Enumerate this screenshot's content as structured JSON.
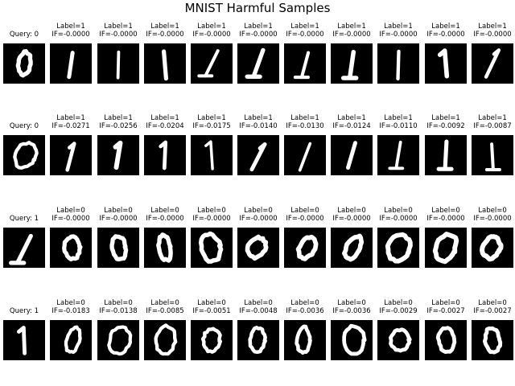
{
  "title": "MNIST Harmful Samples",
  "rows": [
    {
      "query": {
        "text": "Query: 0",
        "digit": "zero",
        "variant": 0
      },
      "samples": [
        {
          "l1": "Label=1",
          "l2": "IF=-0.0000",
          "digit": "one",
          "variant": 1
        },
        {
          "l1": "Label=1",
          "l2": "IF=-0.0000",
          "digit": "one",
          "variant": 2
        },
        {
          "l1": "Label=1",
          "l2": "IF=-0.0000",
          "digit": "one",
          "variant": 3
        },
        {
          "l1": "Label=1",
          "l2": "IF=-0.0000",
          "digit": "one",
          "variant": 4
        },
        {
          "l1": "Label=1",
          "l2": "IF=-0.0000",
          "digit": "one",
          "variant": 5
        },
        {
          "l1": "Label=1",
          "l2": "IF=-0.0000",
          "digit": "one",
          "variant": 6
        },
        {
          "l1": "Label=1",
          "l2": "IF=-0.0000",
          "digit": "one",
          "variant": 7
        },
        {
          "l1": "Label=1",
          "l2": "IF=-0.0000",
          "digit": "one",
          "variant": 8
        },
        {
          "l1": "Label=1",
          "l2": "IF=-0.0000",
          "digit": "one",
          "variant": 9
        },
        {
          "l1": "Label=1",
          "l2": "IF=-0.0000",
          "digit": "one",
          "variant": 10
        }
      ]
    },
    {
      "query": {
        "text": "Query: 0",
        "digit": "zero",
        "variant": 11
      },
      "samples": [
        {
          "l1": "Label=1",
          "l2": "IF=-0.0271",
          "digit": "one",
          "variant": 12
        },
        {
          "l1": "Label=1",
          "l2": "IF=-0.0256",
          "digit": "one",
          "variant": 13
        },
        {
          "l1": "Label=1",
          "l2": "IF=-0.0204",
          "digit": "one",
          "variant": 14
        },
        {
          "l1": "Label=1",
          "l2": "IF=-0.0175",
          "digit": "one",
          "variant": 15
        },
        {
          "l1": "Label=1",
          "l2": "IF=-0.0140",
          "digit": "one",
          "variant": 16
        },
        {
          "l1": "Label=1",
          "l2": "IF=-0.0130",
          "digit": "one",
          "variant": 17
        },
        {
          "l1": "Label=1",
          "l2": "IF=-0.0124",
          "digit": "one",
          "variant": 18
        },
        {
          "l1": "Label=1",
          "l2": "IF=-0.0110",
          "digit": "one",
          "variant": 19
        },
        {
          "l1": "Label=1",
          "l2": "IF=-0.0092",
          "digit": "one",
          "variant": 20
        },
        {
          "l1": "Label=1",
          "l2": "IF=-0.0087",
          "digit": "one",
          "variant": 21
        }
      ]
    },
    {
      "query": {
        "text": "Query: 1",
        "digit": "one",
        "variant": 22
      },
      "samples": [
        {
          "l1": "Label=0",
          "l2": "IF=-0.0000",
          "digit": "zero",
          "variant": 23
        },
        {
          "l1": "Label=0",
          "l2": "IF=-0.0000",
          "digit": "zero",
          "variant": 24
        },
        {
          "l1": "Label=0",
          "l2": "IF=-0.0000",
          "digit": "zero",
          "variant": 25
        },
        {
          "l1": "Label=0",
          "l2": "IF=-0.0000",
          "digit": "zero",
          "variant": 26
        },
        {
          "l1": "Label=0",
          "l2": "IF=-0.0000",
          "digit": "zero",
          "variant": 27
        },
        {
          "l1": "Label=0",
          "l2": "IF=-0.0000",
          "digit": "zero",
          "variant": 28
        },
        {
          "l1": "Label=0",
          "l2": "IF=-0.0000",
          "digit": "zero",
          "variant": 29
        },
        {
          "l1": "Label=0",
          "l2": "IF=-0.0000",
          "digit": "zero",
          "variant": 30
        },
        {
          "l1": "Label=0",
          "l2": "IF=-0.0000",
          "digit": "zero",
          "variant": 31
        },
        {
          "l1": "Label=0",
          "l2": "IF=-0.0000",
          "digit": "zero",
          "variant": 32
        }
      ]
    },
    {
      "query": {
        "text": "Query: 1",
        "digit": "one",
        "variant": 33
      },
      "samples": [
        {
          "l1": "Label=0",
          "l2": "IF=-0.0183",
          "digit": "zero",
          "variant": 34
        },
        {
          "l1": "Label=0",
          "l2": "IF=-0.0138",
          "digit": "zero",
          "variant": 35
        },
        {
          "l1": "Label=0",
          "l2": "IF=-0.0085",
          "digit": "zero",
          "variant": 36
        },
        {
          "l1": "Label=0",
          "l2": "IF=-0.0051",
          "digit": "zero",
          "variant": 37
        },
        {
          "l1": "Label=0",
          "l2": "IF=-0.0048",
          "digit": "zero",
          "variant": 38
        },
        {
          "l1": "Label=0",
          "l2": "IF=-0.0036",
          "digit": "zero",
          "variant": 39
        },
        {
          "l1": "Label=0",
          "l2": "IF=-0.0036",
          "digit": "zero",
          "variant": 40
        },
        {
          "l1": "Label=0",
          "l2": "IF=-0.0029",
          "digit": "zero",
          "variant": 41
        },
        {
          "l1": "Label=0",
          "l2": "IF=-0.0027",
          "digit": "zero",
          "variant": 42
        },
        {
          "l1": "Label=0",
          "l2": "IF=-0.0027",
          "digit": "zero",
          "variant": 43
        }
      ]
    }
  ]
}
